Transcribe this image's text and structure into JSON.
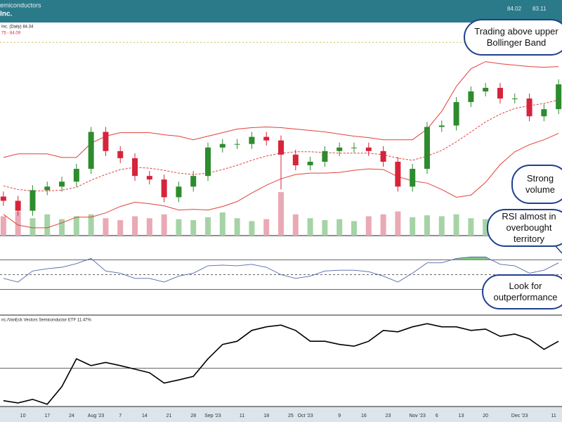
{
  "header": {
    "group": "emiconductors",
    "name": "Inc.",
    "quotes": [
      "84.02",
      "83.11"
    ]
  },
  "chart_data": [
    {
      "type": "candlestick",
      "legend_label": "Inc. (Daily) 84.34",
      "bands_label": "75 - 84.09",
      "x": [
        0,
        3,
        6,
        9,
        12,
        15,
        18,
        21,
        24,
        27,
        30,
        33,
        36,
        39,
        42,
        45,
        48,
        51,
        54,
        57,
        60,
        63,
        66,
        69,
        72,
        75,
        78,
        81,
        84,
        87,
        90,
        93,
        96,
        99,
        102,
        105,
        108,
        111,
        114
      ],
      "open": [
        68.5,
        67.9,
        66.5,
        69.4,
        69.9,
        70.6,
        72.4,
        77.6,
        74.9,
        73.9,
        71.4,
        70.9,
        68.4,
        69.9,
        71.4,
        75.4,
        75.9,
        75.9,
        76.9,
        76.4,
        74.4,
        72.9,
        73.4,
        74.9,
        75.4,
        75.4,
        74.9,
        73.4,
        69.9,
        72.4,
        78.3,
        78.5,
        81.8,
        83.3,
        83.8,
        82.3,
        82.3,
        79.8,
        80.8
      ],
      "high": [
        69.2,
        68.6,
        70.1,
        70.6,
        71.3,
        73.1,
        78.3,
        78.3,
        75.6,
        74.6,
        72.1,
        71.6,
        70.6,
        72.1,
        76.1,
        76.6,
        76.6,
        77.6,
        77.6,
        77.1,
        75.1,
        74.1,
        75.6,
        76.1,
        76.1,
        76.1,
        75.6,
        74.1,
        73.1,
        79.0,
        79.2,
        82.5,
        84.0,
        84.5,
        84.5,
        83.0,
        83.0,
        81.5,
        85.0
      ],
      "low": [
        67.2,
        65.8,
        65.8,
        68.7,
        69.2,
        69.9,
        71.7,
        74.2,
        73.2,
        70.7,
        70.2,
        67.7,
        67.7,
        69.2,
        70.7,
        74.7,
        75.2,
        75.2,
        75.7,
        69.5,
        72.2,
        72.2,
        72.7,
        74.2,
        74.7,
        74.2,
        72.7,
        69.2,
        69.2,
        71.7,
        77.6,
        77.8,
        81.1,
        82.6,
        81.6,
        81.6,
        79.1,
        79.1,
        80.1
      ],
      "close": [
        67.9,
        66.5,
        69.4,
        69.9,
        70.6,
        72.4,
        77.6,
        74.9,
        73.9,
        71.4,
        70.9,
        68.4,
        69.9,
        71.4,
        75.4,
        75.9,
        75.9,
        76.9,
        76.4,
        74.4,
        72.9,
        73.4,
        74.9,
        75.4,
        75.4,
        74.9,
        73.4,
        69.9,
        72.4,
        78.3,
        78.5,
        81.8,
        83.3,
        83.8,
        82.3,
        82.3,
        79.8,
        80.8,
        84.3
      ],
      "up_color": "#2e8b2e",
      "down_color": "#d6243a",
      "bands": {
        "color": "#e0413a",
        "upper": [
          74,
          74.5,
          74.5,
          74.5,
          74,
          74,
          76,
          77,
          77.5,
          77.5,
          77.5,
          77.2,
          77,
          76.5,
          77,
          77.5,
          78,
          78.2,
          78.3,
          78.2,
          78,
          77.8,
          77.6,
          77.3,
          77,
          76.8,
          76.5,
          76.5,
          76.5,
          78,
          80.5,
          84,
          86.5,
          87.5,
          87.2,
          87,
          86.8,
          86.7,
          86.8
        ],
        "middle": [
          70,
          69.5,
          69.3,
          69.3,
          69.4,
          69.8,
          70.8,
          71.6,
          72.3,
          72.6,
          72.5,
          72.2,
          71.8,
          71.6,
          71.8,
          72.3,
          72.9,
          73.6,
          74.2,
          74.6,
          74.8,
          74.8,
          74.7,
          74.6,
          74.6,
          74.6,
          74.4,
          73.9,
          73.6,
          74.2,
          75,
          76.2,
          77.6,
          79,
          80.1,
          80.9,
          81.3,
          81.6,
          82.1
        ],
        "lower": [
          66,
          64.5,
          64.1,
          64.1,
          64.8,
          65.6,
          65.6,
          66.2,
          67.1,
          67.7,
          67.5,
          67.2,
          66.6,
          66.7,
          66.6,
          67.1,
          67.8,
          69,
          70.1,
          71,
          71.6,
          71.8,
          71.8,
          71.9,
          72.2,
          72.4,
          72.3,
          71.3,
          70.7,
          70.4,
          69.5,
          68.4,
          68.7,
          70.5,
          73,
          74.8,
          75.8,
          76.5,
          77.4
        ]
      },
      "hline": 90.2,
      "volume": {
        "values": [
          20,
          25,
          18,
          22,
          17,
          20,
          22,
          18,
          16,
          20,
          18,
          22,
          17,
          16,
          19,
          24,
          18,
          15,
          17,
          45,
          22,
          18,
          16,
          17,
          15,
          20,
          22,
          25,
          19,
          21,
          20,
          22,
          18,
          17,
          19,
          16,
          18,
          17,
          20
        ],
        "ylim": [
          0,
          80
        ],
        "up_color": "#a6d3a6",
        "down_color": "#e9a9b5"
      },
      "xlim": [
        -0.7,
        114.7
      ],
      "ylim": [
        63,
        93
      ]
    },
    {
      "type": "line",
      "color": "#5566aa",
      "over_color": "#7cc47c",
      "values": [
        45,
        40,
        55,
        58,
        60,
        65,
        72,
        55,
        52,
        45,
        45,
        40,
        48,
        52,
        62,
        63,
        62,
        64,
        60,
        50,
        45,
        48,
        55,
        56,
        56,
        54,
        48,
        40,
        52,
        66,
        66,
        72,
        74,
        74,
        64,
        62,
        52,
        56,
        66
      ],
      "hlines": [
        70,
        50,
        30
      ],
      "ylim": [
        0,
        100
      ]
    },
    {
      "type": "line",
      "label": "nc./VanEck Vectors Semiconductor ETF 11.47%",
      "color": "#000000",
      "values": [
        10.13,
        10.08,
        10.16,
        10.05,
        10.44,
        11.06,
        10.91,
        10.98,
        10.91,
        10.83,
        10.75,
        10.52,
        10.59,
        10.67,
        11.06,
        11.38,
        11.45,
        11.69,
        11.77,
        11.81,
        11.69,
        11.45,
        11.45,
        11.38,
        11.34,
        11.45,
        11.69,
        11.66,
        11.77,
        11.84,
        11.77,
        11.77,
        11.69,
        11.72,
        11.56,
        11.61,
        11.5,
        11.27,
        11.45
      ],
      "hline": 10.85,
      "ylim": [
        10,
        12
      ],
      "xticks": [
        {
          "value": 4,
          "label": "10"
        },
        {
          "value": 9,
          "label": "17"
        },
        {
          "value": 14,
          "label": "24"
        },
        {
          "value": 19,
          "label": "Aug '23"
        },
        {
          "value": 24,
          "label": "7"
        },
        {
          "value": 29,
          "label": "14"
        },
        {
          "value": 34,
          "label": "21"
        },
        {
          "value": 39,
          "label": "28"
        },
        {
          "value": 43,
          "label": "Sep '23"
        },
        {
          "value": 49,
          "label": "11"
        },
        {
          "value": 54,
          "label": "18"
        },
        {
          "value": 59,
          "label": "25"
        },
        {
          "value": 62,
          "label": "Oct '23"
        },
        {
          "value": 69,
          "label": "9"
        },
        {
          "value": 74,
          "label": "16"
        },
        {
          "value": 79,
          "label": "23"
        },
        {
          "value": 85,
          "label": "Nov '23"
        },
        {
          "value": 89,
          "label": "6"
        },
        {
          "value": 94,
          "label": "13"
        },
        {
          "value": 99,
          "label": "20"
        },
        {
          "value": 106,
          "label": "Dec '23"
        },
        {
          "value": 113,
          "label": "11"
        }
      ]
    }
  ],
  "annotations": [
    {
      "text": "Trading above upper Bollinger Band"
    },
    {
      "text": "Strong volume"
    },
    {
      "text": "RSI almost in overbought territory"
    },
    {
      "text": "Look for outperformance"
    }
  ]
}
